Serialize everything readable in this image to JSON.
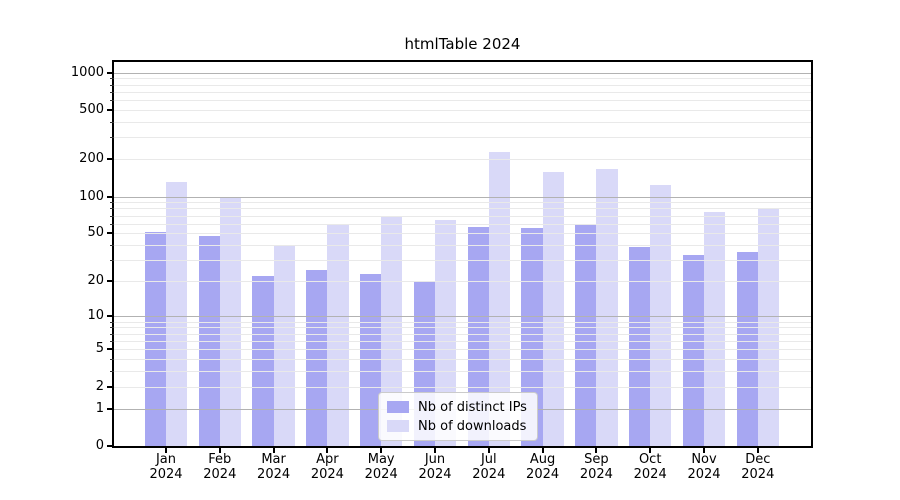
{
  "chart_data": {
    "type": "bar",
    "title": "htmlTable 2024",
    "categories": [
      "Jan",
      "Feb",
      "Mar",
      "Apr",
      "May",
      "Jun",
      "Jul",
      "Aug",
      "Sep",
      "Oct",
      "Nov",
      "Dec"
    ],
    "category_year": "2024",
    "series": [
      {
        "name": "Nb of distinct IPs",
        "color": "#a7a7f2",
        "values": [
          51,
          48,
          22,
          25,
          23,
          20,
          56,
          55,
          60,
          39,
          33,
          35
        ]
      },
      {
        "name": "Nb of downloads",
        "color": "#d9d9f8",
        "values": [
          130,
          100,
          40,
          60,
          70,
          65,
          230,
          158,
          166,
          125,
          75,
          80
        ]
      }
    ],
    "y_axis": {
      "scale": "log1p",
      "ticks": [
        0,
        1,
        2,
        5,
        10,
        20,
        50,
        100,
        200,
        500,
        1000
      ],
      "range": [
        0,
        1215
      ]
    },
    "x_axis": {
      "label_lines": 2
    },
    "grid": {
      "major_at": [
        1,
        10,
        100,
        1000
      ],
      "major_color": "#b2b2b2",
      "minor_color": "#e9e9e9"
    },
    "legend": {
      "position": "lower-center"
    },
    "colors": {
      "axis": "#000000",
      "background": "#ffffff",
      "text": "#000000"
    }
  }
}
